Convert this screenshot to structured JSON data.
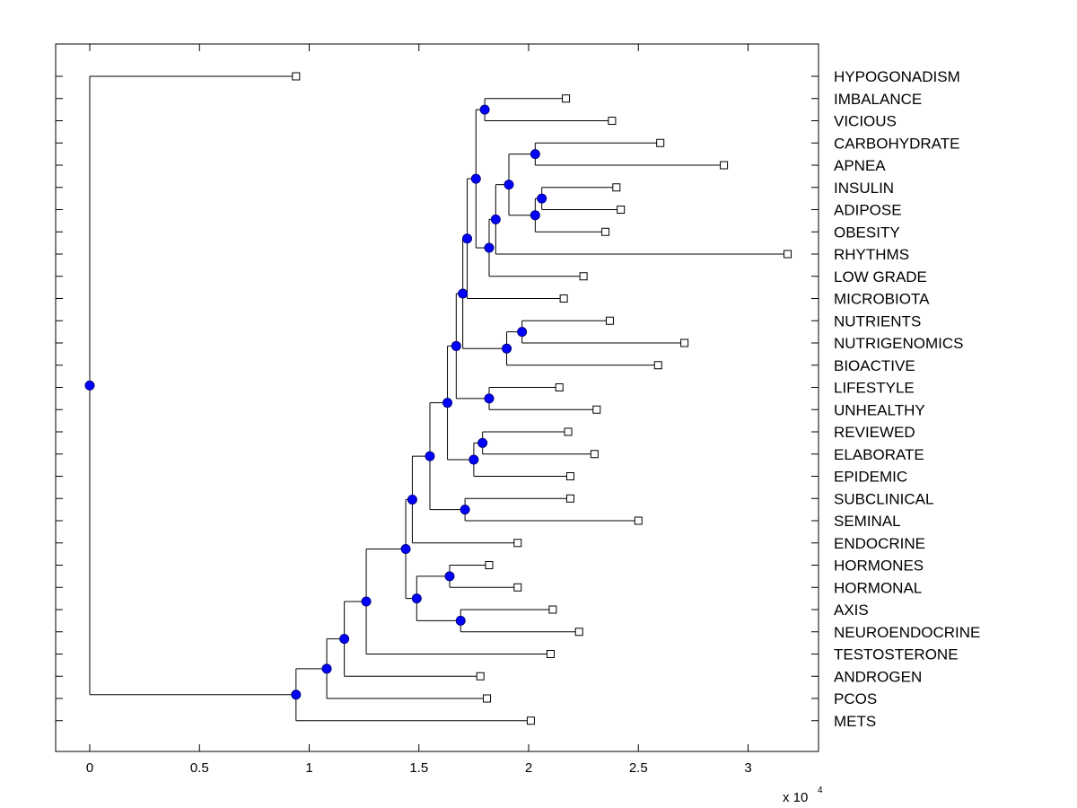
{
  "chart_data": {
    "type": "dendrogram",
    "x_axis": {
      "range": [
        -0.15,
        3.35
      ],
      "ticks": [
        0,
        0.5,
        1,
        1.5,
        2,
        2.5,
        3
      ],
      "tick_labels": [
        "0",
        "0.5",
        "1",
        "1.5",
        "2",
        "2.5",
        "3"
      ],
      "multiplier_label": "x 10",
      "multiplier_exponent": "4"
    },
    "leaves": [
      {
        "label": "HYPOGONADISM",
        "x": 0.94
      },
      {
        "label": "IMBALANCE",
        "x": 2.17
      },
      {
        "label": "VICIOUS",
        "x": 2.38
      },
      {
        "label": "CARBOHYDRATE",
        "x": 2.6
      },
      {
        "label": "APNEA",
        "x": 2.89
      },
      {
        "label": "INSULIN",
        "x": 2.4
      },
      {
        "label": "ADIPOSE",
        "x": 2.42
      },
      {
        "label": "OBESITY",
        "x": 2.35
      },
      {
        "label": "RHYTHMS",
        "x": 3.18
      },
      {
        "label": "LOW GRADE",
        "x": 2.25
      },
      {
        "label": "MICROBIOTA",
        "x": 2.16
      },
      {
        "label": "NUTRIENTS",
        "x": 2.37
      },
      {
        "label": "NUTRIGENOMICS",
        "x": 2.71
      },
      {
        "label": "BIOACTIVE",
        "x": 2.59
      },
      {
        "label": "LIFESTYLE",
        "x": 2.14
      },
      {
        "label": "UNHEALTHY",
        "x": 2.31
      },
      {
        "label": "REVIEWED",
        "x": 2.18
      },
      {
        "label": "ELABORATE",
        "x": 2.3
      },
      {
        "label": "EPIDEMIC",
        "x": 2.19
      },
      {
        "label": "SUBCLINICAL",
        "x": 2.19
      },
      {
        "label": "SEMINAL",
        "x": 2.5
      },
      {
        "label": "ENDOCRINE",
        "x": 1.95
      },
      {
        "label": "HORMONES",
        "x": 1.82
      },
      {
        "label": "HORMONAL",
        "x": 1.95
      },
      {
        "label": "AXIS",
        "x": 2.11
      },
      {
        "label": "NEUROENDOCRINE",
        "x": 2.23
      },
      {
        "label": "TESTOSTERONE",
        "x": 2.1
      },
      {
        "label": "ANDROGEN",
        "x": 1.78
      },
      {
        "label": "PCOS",
        "x": 1.81
      },
      {
        "label": "METS",
        "x": 2.01
      }
    ],
    "nodes": [
      {
        "id": "n1",
        "x": 1.8,
        "children": [
          "IMBALANCE",
          "VICIOUS"
        ]
      },
      {
        "id": "n2",
        "x": 2.06,
        "children": [
          "INSULIN",
          "ADIPOSE"
        ]
      },
      {
        "id": "n3",
        "x": 2.03,
        "children": [
          "n2",
          "OBESITY"
        ]
      },
      {
        "id": "n4",
        "x": 2.03,
        "children": [
          "CARBOHYDRATE",
          "APNEA"
        ]
      },
      {
        "id": "n5",
        "x": 1.91,
        "children": [
          "n4",
          "n3"
        ]
      },
      {
        "id": "n6",
        "x": 1.85,
        "children": [
          "n5",
          "RHYTHMS"
        ]
      },
      {
        "id": "n7",
        "x": 1.82,
        "children": [
          "n6",
          "LOW GRADE"
        ]
      },
      {
        "id": "n8",
        "x": 1.76,
        "children": [
          "n1",
          "n7"
        ]
      },
      {
        "id": "n9",
        "x": 1.72,
        "children": [
          "n8",
          "MICROBIOTA"
        ]
      },
      {
        "id": "n10",
        "x": 1.97,
        "children": [
          "NUTRIENTS",
          "NUTRIGENOMICS"
        ]
      },
      {
        "id": "n11",
        "x": 1.9,
        "children": [
          "n10",
          "BIOACTIVE"
        ]
      },
      {
        "id": "n12",
        "x": 1.7,
        "children": [
          "n9",
          "n11"
        ]
      },
      {
        "id": "n13",
        "x": 1.82,
        "children": [
          "LIFESTYLE",
          "UNHEALTHY"
        ]
      },
      {
        "id": "n14",
        "x": 1.67,
        "children": [
          "n12",
          "n13"
        ]
      },
      {
        "id": "n15",
        "x": 1.79,
        "children": [
          "REVIEWED",
          "ELABORATE"
        ]
      },
      {
        "id": "n16",
        "x": 1.75,
        "children": [
          "n15",
          "EPIDEMIC"
        ]
      },
      {
        "id": "n17",
        "x": 1.63,
        "children": [
          "n14",
          "n16"
        ]
      },
      {
        "id": "n18",
        "x": 1.71,
        "children": [
          "SUBCLINICAL",
          "SEMINAL"
        ]
      },
      {
        "id": "n19",
        "x": 1.55,
        "children": [
          "n17",
          "n18"
        ]
      },
      {
        "id": "n20",
        "x": 1.47,
        "children": [
          "n19",
          "ENDOCRINE"
        ]
      },
      {
        "id": "n21",
        "x": 1.64,
        "children": [
          "HORMONES",
          "HORMONAL"
        ]
      },
      {
        "id": "n22",
        "x": 1.69,
        "children": [
          "AXIS",
          "NEUROENDOCRINE"
        ]
      },
      {
        "id": "n23",
        "x": 1.49,
        "children": [
          "n21",
          "n22"
        ]
      },
      {
        "id": "n24",
        "x": 1.44,
        "children": [
          "n20",
          "n23"
        ]
      },
      {
        "id": "n25",
        "x": 1.26,
        "children": [
          "n24",
          "TESTOSTERONE"
        ]
      },
      {
        "id": "n26",
        "x": 1.16,
        "children": [
          "n25",
          "ANDROGEN"
        ]
      },
      {
        "id": "n27",
        "x": 1.08,
        "children": [
          "n26",
          "PCOS"
        ]
      },
      {
        "id": "n28",
        "x": 0.94,
        "children": [
          "n27",
          "METS"
        ]
      },
      {
        "id": "root",
        "x": 0.0,
        "children": [
          "HYPOGONADISM",
          "n28"
        ]
      }
    ],
    "colors": {
      "node_fill": "#0000ff",
      "node_stroke": "#000080",
      "line": "#000000",
      "leaf_fill": "#ffffff"
    },
    "grid": false
  }
}
